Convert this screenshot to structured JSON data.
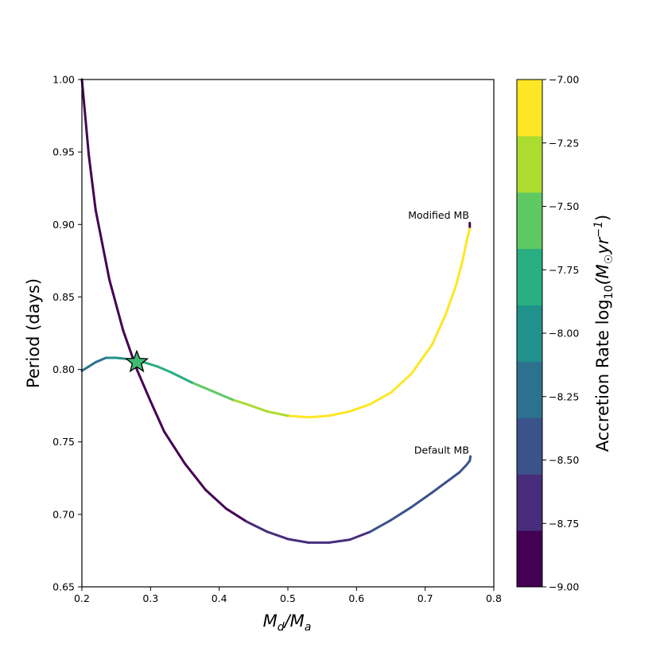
{
  "chart_data": {
    "type": "line",
    "xlabel_main": "M",
    "xlabel_sub1": "d",
    "xlabel_sep": "/M",
    "xlabel_sub2": "a",
    "ylabel": "Period (days)",
    "xlim": [
      0.2,
      0.8
    ],
    "ylim": [
      0.65,
      1.0
    ],
    "x_ticks": [
      "0.2",
      "0.3",
      "0.4",
      "0.5",
      "0.6",
      "0.7",
      "0.8"
    ],
    "y_ticks": [
      "0.65",
      "0.70",
      "0.75",
      "0.80",
      "0.85",
      "0.90",
      "0.95",
      "1.00"
    ],
    "grid": false,
    "colorbar": {
      "label_prefix": "Accretion Rate log",
      "label_sub": "10",
      "label_open": "(M",
      "label_sub_sun": "☉",
      "label_unit": "yr",
      "label_sup": "−1",
      "label_close": ")",
      "range": [
        -9.0,
        -7.0
      ],
      "tick_labels": [
        "−9.00",
        "−8.75",
        "−8.50",
        "−8.25",
        "−8.00",
        "−7.75",
        "−7.50",
        "−7.25",
        "−7.00"
      ],
      "colors": [
        "#440154",
        "#472d7b",
        "#3b528b",
        "#2c728e",
        "#21918c",
        "#28ae80",
        "#5ec962",
        "#addc30",
        "#fde725"
      ]
    },
    "series": [
      {
        "annotation": "Modified MB",
        "points": [
          [
            0.765,
            0.901,
            -8.9
          ],
          [
            0.765,
            0.897,
            -7.1
          ],
          [
            0.762,
            0.892,
            -7.05
          ],
          [
            0.755,
            0.876,
            -7.05
          ],
          [
            0.745,
            0.858,
            -7.05
          ],
          [
            0.73,
            0.838,
            -7.05
          ],
          [
            0.71,
            0.817,
            -7.05
          ],
          [
            0.68,
            0.797,
            -7.05
          ],
          [
            0.65,
            0.784,
            -7.05
          ],
          [
            0.62,
            0.776,
            -7.05
          ],
          [
            0.59,
            0.771,
            -7.1
          ],
          [
            0.56,
            0.768,
            -7.1
          ],
          [
            0.53,
            0.767,
            -7.1
          ],
          [
            0.5,
            0.768,
            -7.3
          ],
          [
            0.47,
            0.771,
            -7.35
          ],
          [
            0.44,
            0.776,
            -7.4
          ],
          [
            0.42,
            0.779,
            -7.6
          ],
          [
            0.39,
            0.785,
            -7.65
          ],
          [
            0.36,
            0.791,
            -7.7
          ],
          [
            0.33,
            0.798,
            -7.8
          ],
          [
            0.31,
            0.802,
            -7.85
          ],
          [
            0.29,
            0.805,
            -7.9
          ],
          [
            0.27,
            0.807,
            -8.05
          ],
          [
            0.25,
            0.808,
            -8.1
          ],
          [
            0.235,
            0.808,
            -8.15
          ],
          [
            0.22,
            0.805,
            -8.2
          ],
          [
            0.21,
            0.802,
            -8.25
          ],
          [
            0.2,
            0.799,
            -8.3
          ]
        ]
      },
      {
        "annotation": "Default MB",
        "points": [
          [
            0.2,
            1.0,
            -8.95
          ],
          [
            0.21,
            0.948,
            -8.95
          ],
          [
            0.22,
            0.91,
            -8.95
          ],
          [
            0.24,
            0.862,
            -8.95
          ],
          [
            0.26,
            0.827,
            -8.95
          ],
          [
            0.28,
            0.8,
            -8.95
          ],
          [
            0.3,
            0.778,
            -8.95
          ],
          [
            0.32,
            0.757,
            -8.95
          ],
          [
            0.35,
            0.735,
            -8.95
          ],
          [
            0.38,
            0.717,
            -8.95
          ],
          [
            0.41,
            0.704,
            -8.95
          ],
          [
            0.44,
            0.695,
            -8.6
          ],
          [
            0.47,
            0.688,
            -8.6
          ],
          [
            0.5,
            0.683,
            -8.6
          ],
          [
            0.53,
            0.6805,
            -8.6
          ],
          [
            0.56,
            0.6805,
            -8.6
          ],
          [
            0.59,
            0.6825,
            -8.6
          ],
          [
            0.62,
            0.688,
            -8.35
          ],
          [
            0.65,
            0.696,
            -8.35
          ],
          [
            0.68,
            0.705,
            -8.35
          ],
          [
            0.71,
            0.715,
            -8.35
          ],
          [
            0.73,
            0.722,
            -8.35
          ],
          [
            0.75,
            0.729,
            -8.35
          ],
          [
            0.76,
            0.734,
            -8.35
          ],
          [
            0.765,
            0.737,
            -8.35
          ],
          [
            0.766,
            0.74,
            -8.35
          ]
        ]
      }
    ],
    "marker": {
      "type": "star",
      "x": 0.28,
      "y": 0.805,
      "color": "#3fbc73"
    }
  }
}
